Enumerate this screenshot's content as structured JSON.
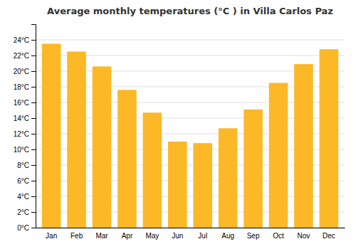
{
  "chart_data": {
    "type": "bar",
    "title": "Average monthly temperatures (°C ) in Villa Carlos Paz",
    "categories": [
      "Jan",
      "Feb",
      "Mar",
      "Apr",
      "May",
      "Jun",
      "Jul",
      "Aug",
      "Sep",
      "Oct",
      "Nov",
      "Dec"
    ],
    "values": [
      23.5,
      22.5,
      20.6,
      17.6,
      14.7,
      11.0,
      10.8,
      12.7,
      15.1,
      18.5,
      20.9,
      22.8
    ],
    "color": "#FDB827",
    "ylim": [
      0,
      26
    ],
    "yticks": [
      {
        "value": 0,
        "label": "0°C"
      },
      {
        "value": 2,
        "label": "2°C"
      },
      {
        "value": 4,
        "label": "4°C"
      },
      {
        "value": 6,
        "label": "6°C"
      },
      {
        "value": 8,
        "label": "8°C"
      },
      {
        "value": 10,
        "label": "10°C"
      },
      {
        "value": 12,
        "label": "12°C"
      },
      {
        "value": 14,
        "label": "14°C"
      },
      {
        "value": 16,
        "label": "16°C"
      },
      {
        "value": 18,
        "label": "18°C"
      },
      {
        "value": 20,
        "label": "20°C"
      },
      {
        "value": 22,
        "label": "22°C"
      },
      {
        "value": 24,
        "label": "24°C"
      }
    ],
    "grid": true
  }
}
